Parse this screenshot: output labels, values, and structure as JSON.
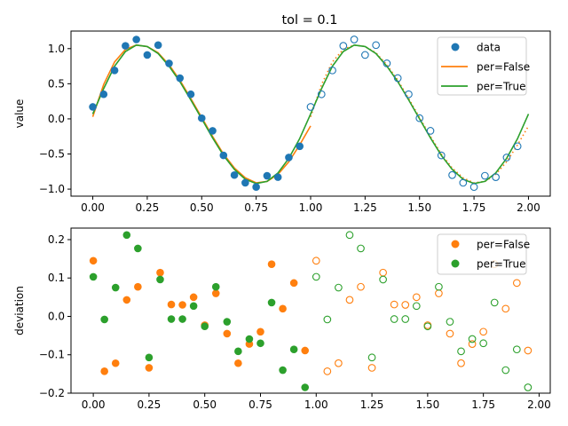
{
  "colors": {
    "data": "#1f77b4",
    "per_false": "#ff7f0e",
    "per_true": "#2ca02c"
  },
  "chart_data": [
    {
      "type": "scatter",
      "title": "tol = 0.1",
      "ylabel": "value",
      "xlabel": "",
      "xlim": [
        -0.1,
        2.1
      ],
      "ylim": [
        -1.1,
        1.25
      ],
      "xticks": [
        0.0,
        0.25,
        0.5,
        0.75,
        1.0,
        1.25,
        1.5,
        1.75,
        2.0
      ],
      "xtick_labels": [
        "0.00",
        "0.25",
        "0.50",
        "0.75",
        "1.00",
        "1.25",
        "1.50",
        "1.75",
        "2.00"
      ],
      "yticks": [
        -1.0,
        -0.5,
        0.0,
        0.5,
        1.0
      ],
      "ytick_labels": [
        "−1.0",
        "−0.5",
        "0.0",
        "0.5",
        "1.0"
      ],
      "legend": {
        "placement": "upper right",
        "entries": [
          "data",
          "per=False",
          "per=True"
        ]
      },
      "series": [
        {
          "name": "data",
          "style": "filled-markers",
          "x": [
            0.0,
            0.05,
            0.1,
            0.15,
            0.2,
            0.25,
            0.3,
            0.35,
            0.4,
            0.45,
            0.5,
            0.55,
            0.6,
            0.65,
            0.7,
            0.75,
            0.8,
            0.85,
            0.9,
            0.95
          ],
          "y": [
            0.17,
            0.35,
            0.69,
            1.04,
            1.13,
            0.91,
            1.05,
            0.79,
            0.58,
            0.35,
            0.01,
            -0.17,
            -0.52,
            -0.8,
            -0.91,
            -0.97,
            -0.81,
            -0.83,
            -0.55,
            -0.39
          ]
        },
        {
          "name": "data (periodic copy)",
          "style": "open-markers",
          "x": [
            1.0,
            1.05,
            1.1,
            1.15,
            1.2,
            1.25,
            1.3,
            1.35,
            1.4,
            1.45,
            1.5,
            1.55,
            1.6,
            1.65,
            1.7,
            1.75,
            1.8,
            1.85,
            1.9,
            1.95
          ],
          "y": [
            0.17,
            0.35,
            0.69,
            1.04,
            1.13,
            0.91,
            1.05,
            0.79,
            0.58,
            0.35,
            0.01,
            -0.17,
            -0.52,
            -0.8,
            -0.91,
            -0.97,
            -0.81,
            -0.83,
            -0.55,
            -0.39
          ]
        },
        {
          "name": "per=False",
          "style": "line",
          "x": [
            0.0,
            0.05,
            0.1,
            0.15,
            0.2,
            0.25,
            0.3,
            0.35,
            0.4,
            0.45,
            0.5,
            0.55,
            0.6,
            0.65,
            0.7,
            0.75,
            0.8,
            0.85,
            0.9,
            0.95,
            1.0
          ],
          "y": [
            0.03,
            0.49,
            0.81,
            0.99,
            1.05,
            1.03,
            0.94,
            0.77,
            0.55,
            0.29,
            0.02,
            -0.25,
            -0.5,
            -0.7,
            -0.84,
            -0.91,
            -0.89,
            -0.79,
            -0.61,
            -0.37,
            -0.1
          ]
        },
        {
          "name": "per=False (continued)",
          "style": "dotted-line",
          "x": [
            1.0,
            1.05,
            1.1,
            1.15,
            1.2,
            1.25,
            1.3,
            1.35,
            1.4,
            1.45,
            1.5,
            1.55,
            1.6,
            1.65,
            1.7,
            1.75,
            1.8,
            1.85,
            1.9,
            1.95,
            2.0
          ],
          "y": [
            0.03,
            0.49,
            0.81,
            0.99,
            1.05,
            1.03,
            0.94,
            0.77,
            0.55,
            0.29,
            0.02,
            -0.25,
            -0.5,
            -0.7,
            -0.84,
            -0.91,
            -0.89,
            -0.79,
            -0.61,
            -0.37,
            -0.1
          ]
        },
        {
          "name": "per=True",
          "style": "line",
          "x": [
            0.0,
            0.05,
            0.1,
            0.15,
            0.2,
            0.25,
            0.3,
            0.35,
            0.4,
            0.45,
            0.5,
            0.55,
            0.6,
            0.65,
            0.7,
            0.75,
            0.8,
            0.85,
            0.9,
            0.95,
            1.0,
            1.05,
            1.1,
            1.15,
            1.2,
            1.25,
            1.3,
            1.35,
            1.4,
            1.45,
            1.5,
            1.55,
            1.6,
            1.65,
            1.7,
            1.75,
            1.8,
            1.85,
            1.9,
            1.95,
            2.0
          ],
          "y": [
            0.07,
            0.43,
            0.75,
            0.96,
            1.05,
            1.03,
            0.93,
            0.75,
            0.53,
            0.27,
            0.0,
            -0.27,
            -0.52,
            -0.72,
            -0.86,
            -0.92,
            -0.89,
            -0.77,
            -0.56,
            -0.28,
            0.07,
            0.43,
            0.75,
            0.96,
            1.05,
            1.03,
            0.93,
            0.75,
            0.53,
            0.27,
            0.0,
            -0.27,
            -0.52,
            -0.72,
            -0.86,
            -0.92,
            -0.89,
            -0.77,
            -0.56,
            -0.28,
            0.07
          ]
        }
      ]
    },
    {
      "type": "scatter",
      "title": "",
      "ylabel": "deviation",
      "xlabel": "",
      "xlim": [
        -0.1,
        2.05
      ],
      "ylim": [
        -0.2,
        0.23
      ],
      "xticks": [
        0.0,
        0.25,
        0.5,
        0.75,
        1.0,
        1.25,
        1.5,
        1.75,
        2.0
      ],
      "xtick_labels": [
        "0.00",
        "0.25",
        "0.50",
        "0.75",
        "1.00",
        "1.25",
        "1.50",
        "1.75",
        "2.00"
      ],
      "yticks": [
        -0.2,
        -0.1,
        0.0,
        0.1,
        0.2
      ],
      "ytick_labels": [
        "−0.2",
        "−0.1",
        "0.0",
        "0.1",
        "0.2"
      ],
      "legend": {
        "placement": "upper right",
        "entries": [
          "per=False",
          "per=True"
        ]
      },
      "series": [
        {
          "name": "per=False",
          "style": "filled-markers",
          "x": [
            0.0,
            0.05,
            0.1,
            0.15,
            0.2,
            0.25,
            0.3,
            0.35,
            0.4,
            0.45,
            0.5,
            0.55,
            0.6,
            0.65,
            0.7,
            0.75,
            0.8,
            0.85,
            0.9,
            0.95
          ],
          "y": [
            0.145,
            -0.143,
            -0.122,
            0.043,
            0.077,
            -0.134,
            0.114,
            0.031,
            0.03,
            0.05,
            -0.023,
            0.06,
            -0.045,
            -0.122,
            -0.072,
            -0.04,
            0.136,
            0.02,
            0.087,
            -0.089
          ]
        },
        {
          "name": "per=False (periodic copy)",
          "style": "open-markers",
          "x": [
            1.0,
            1.05,
            1.1,
            1.15,
            1.2,
            1.25,
            1.3,
            1.35,
            1.4,
            1.45,
            1.5,
            1.55,
            1.6,
            1.65,
            1.7,
            1.75,
            1.8,
            1.85,
            1.9,
            1.95
          ],
          "y": [
            0.145,
            -0.143,
            -0.122,
            0.043,
            0.077,
            -0.134,
            0.114,
            0.031,
            0.03,
            0.05,
            -0.023,
            0.06,
            -0.045,
            -0.122,
            -0.072,
            -0.04,
            0.136,
            0.02,
            0.087,
            -0.089
          ]
        },
        {
          "name": "per=True",
          "style": "filled-markers",
          "x": [
            0.0,
            0.05,
            0.1,
            0.15,
            0.2,
            0.25,
            0.3,
            0.35,
            0.4,
            0.45,
            0.5,
            0.55,
            0.6,
            0.65,
            0.7,
            0.75,
            0.8,
            0.85,
            0.9,
            0.95
          ],
          "y": [
            0.103,
            -0.008,
            0.075,
            0.212,
            0.177,
            -0.107,
            0.096,
            -0.007,
            -0.007,
            0.027,
            -0.026,
            0.077,
            -0.014,
            -0.091,
            -0.059,
            -0.07,
            0.036,
            -0.14,
            -0.086,
            -0.185
          ]
        },
        {
          "name": "per=True (periodic copy)",
          "style": "open-markers",
          "x": [
            1.0,
            1.05,
            1.1,
            1.15,
            1.2,
            1.25,
            1.3,
            1.35,
            1.4,
            1.45,
            1.5,
            1.55,
            1.6,
            1.65,
            1.7,
            1.75,
            1.8,
            1.85,
            1.9,
            1.95
          ],
          "y": [
            0.103,
            -0.008,
            0.075,
            0.212,
            0.177,
            -0.107,
            0.096,
            -0.007,
            -0.007,
            0.027,
            -0.026,
            0.077,
            -0.014,
            -0.091,
            -0.059,
            -0.07,
            0.036,
            -0.14,
            -0.086,
            -0.185
          ]
        }
      ]
    }
  ]
}
